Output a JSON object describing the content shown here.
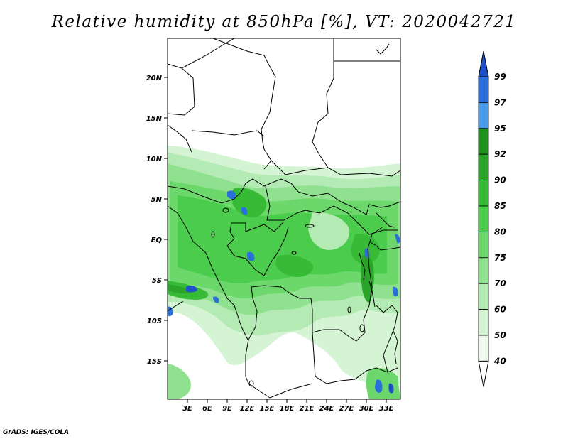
{
  "title": "Relative humidity at 850hPa [%], VT: 2020042721",
  "credit": "GrADS: IGES/COLA",
  "map": {
    "lat_labels": [
      "20N",
      "15N",
      "10N",
      "5N",
      "EQ",
      "5S",
      "10S",
      "15S"
    ],
    "lon_labels": [
      "3E",
      "6E",
      "9E",
      "12E",
      "15E",
      "18E",
      "21E",
      "24E",
      "27E",
      "30E",
      "33E"
    ]
  },
  "colorbar": {
    "levels": [
      "99",
      "97",
      "95",
      "92",
      "90",
      "85",
      "80",
      "75",
      "70",
      "60",
      "50",
      "40"
    ],
    "colors": [
      "#1e50c8",
      "#2a6fdc",
      "#4a9be8",
      "#1f8f1f",
      "#2aa52a",
      "#37bb37",
      "#4ccc4c",
      "#6cd86c",
      "#8fe08f",
      "#b4eab4",
      "#d4f4d4",
      "#eefbee"
    ]
  }
}
